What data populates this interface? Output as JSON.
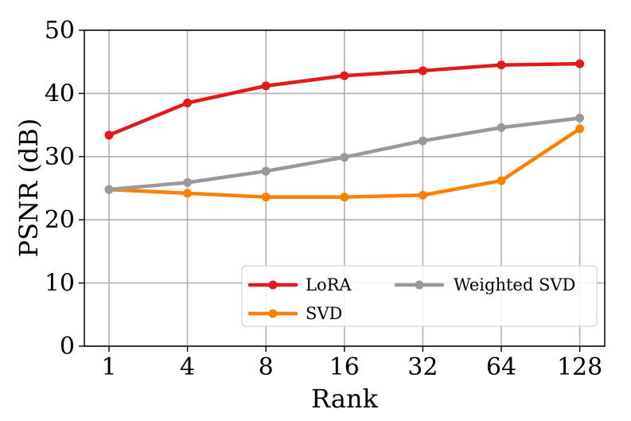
{
  "chart_data": {
    "type": "line",
    "categories": [
      "1",
      "4",
      "8",
      "16",
      "32",
      "64",
      "128"
    ],
    "series": [
      {
        "name": "LoRA",
        "color": "#e31a1c",
        "values": [
          33.4,
          38.5,
          41.2,
          42.8,
          43.6,
          44.5,
          44.7
        ]
      },
      {
        "name": "SVD",
        "color": "#ff7f00",
        "values": [
          24.8,
          24.2,
          23.6,
          23.6,
          23.9,
          26.2,
          34.4
        ]
      },
      {
        "name": "Weighted SVD",
        "color": "#999999",
        "values": [
          24.8,
          25.9,
          27.7,
          29.9,
          32.5,
          34.6,
          36.1
        ]
      }
    ],
    "xlabel": "Rank",
    "ylabel": "PSNR (dB)",
    "ylim": [
      0,
      50
    ],
    "yticks": [
      "0",
      "10",
      "20",
      "30",
      "40",
      "50"
    ],
    "grid": true,
    "legend_position": "bottom-right"
  }
}
